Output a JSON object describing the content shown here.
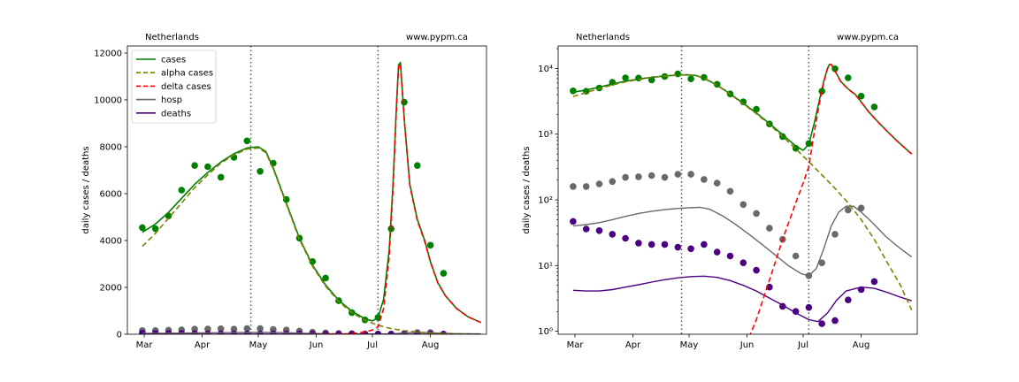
{
  "colors": {
    "cases": "#008000",
    "alpha": "#808000",
    "delta": "#ff0000",
    "hosp": "#696969",
    "deaths": "#4b0082",
    "axes": "#000000",
    "vline": "#555555"
  },
  "vlines": [
    "2021-04-27",
    "2021-07-04"
  ],
  "chart_data": [
    {
      "type": "line",
      "title": "",
      "header_left": "Netherlands",
      "header_right": "www.pypm.ca",
      "ylabel": "daily cases / deaths",
      "xlabel": "",
      "x_ticks": [
        {
          "date": "2021-03-01",
          "label": "Mar"
        },
        {
          "date": "2021-04-01",
          "label": "Apr"
        },
        {
          "date": "2021-05-01",
          "label": "May"
        },
        {
          "date": "2021-06-01",
          "label": "Jun"
        },
        {
          "date": "2021-07-01",
          "label": "Jul"
        },
        {
          "date": "2021-08-01",
          "label": "Aug"
        }
      ],
      "xlim": [
        "2021-02-20",
        "2021-08-31"
      ],
      "ylim": [
        0,
        12300
      ],
      "yscale": "linear",
      "y_ticks": [
        {
          "value": 0,
          "label": "0"
        },
        {
          "value": 2000,
          "label": "2000"
        },
        {
          "value": 4000,
          "label": "4000"
        },
        {
          "value": 6000,
          "label": "6000"
        },
        {
          "value": 8000,
          "label": "8000"
        },
        {
          "value": 10000,
          "label": "10000"
        },
        {
          "value": 12000,
          "label": "12000"
        }
      ],
      "legend_position": "top-left",
      "legend": [
        {
          "name": "cases",
          "style": "solid",
          "color_key": "cases"
        },
        {
          "name": "alpha cases",
          "style": "dashed",
          "color_key": "alpha"
        },
        {
          "name": "delta cases",
          "style": "dashed",
          "color_key": "delta"
        },
        {
          "name": "hosp",
          "style": "solid",
          "color_key": "hosp"
        },
        {
          "name": "deaths",
          "style": "solid",
          "color_key": "deaths"
        }
      ]
    },
    {
      "type": "line",
      "title": "",
      "header_left": "Netherlands",
      "header_right": "www.pypm.ca",
      "ylabel": "daily cases / deaths",
      "xlabel": "",
      "x_ticks": [
        {
          "date": "2021-03-01",
          "label": "Mar"
        },
        {
          "date": "2021-04-01",
          "label": "Apr"
        },
        {
          "date": "2021-05-01",
          "label": "May"
        },
        {
          "date": "2021-06-01",
          "label": "Jun"
        },
        {
          "date": "2021-07-01",
          "label": "Jul"
        },
        {
          "date": "2021-08-01",
          "label": "Aug"
        }
      ],
      "xlim": [
        "2021-02-20",
        "2021-08-31"
      ],
      "ylim": [
        0.9,
        22000
      ],
      "yscale": "log",
      "y_ticks": [
        {
          "value": 1,
          "label": "10⁰"
        },
        {
          "value": 10,
          "label": "10¹"
        },
        {
          "value": 100,
          "label": "10²"
        },
        {
          "value": 1000,
          "label": "10³"
        },
        {
          "value": 10000,
          "label": "10⁴"
        }
      ],
      "legend_position": "none",
      "legend": []
    }
  ],
  "series": {
    "cases_points": [
      [
        "2021-02-28",
        4550
      ],
      [
        "2021-03-07",
        4500
      ],
      [
        "2021-03-14",
        5050
      ],
      [
        "2021-03-21",
        6150
      ],
      [
        "2021-03-28",
        7200
      ],
      [
        "2021-04-04",
        7150
      ],
      [
        "2021-04-11",
        6700
      ],
      [
        "2021-04-18",
        7550
      ],
      [
        "2021-04-25",
        8250
      ],
      [
        "2021-05-02",
        6950
      ],
      [
        "2021-05-09",
        7300
      ],
      [
        "2021-05-16",
        5750
      ],
      [
        "2021-05-23",
        4100
      ],
      [
        "2021-05-30",
        3100
      ],
      [
        "2021-06-06",
        2400
      ],
      [
        "2021-06-13",
        1430
      ],
      [
        "2021-06-20",
        920
      ],
      [
        "2021-06-27",
        610
      ],
      [
        "2021-07-04",
        720
      ],
      [
        "2021-07-11",
        4500
      ],
      [
        "2021-07-18",
        9900
      ],
      [
        "2021-07-25",
        7200
      ],
      [
        "2021-08-01",
        3800
      ],
      [
        "2021-08-08",
        2600
      ]
    ],
    "hosp_points": [
      [
        "2021-02-28",
        160
      ],
      [
        "2021-03-07",
        160
      ],
      [
        "2021-03-14",
        175
      ],
      [
        "2021-03-21",
        190
      ],
      [
        "2021-03-28",
        220
      ],
      [
        "2021-04-04",
        225
      ],
      [
        "2021-04-11",
        235
      ],
      [
        "2021-04-18",
        220
      ],
      [
        "2021-04-25",
        245
      ],
      [
        "2021-05-02",
        245
      ],
      [
        "2021-05-09",
        205
      ],
      [
        "2021-05-16",
        180
      ],
      [
        "2021-05-23",
        135
      ],
      [
        "2021-05-30",
        85
      ],
      [
        "2021-06-06",
        62
      ],
      [
        "2021-06-13",
        37
      ],
      [
        "2021-06-20",
        25
      ],
      [
        "2021-06-27",
        14
      ],
      [
        "2021-07-04",
        7
      ],
      [
        "2021-07-11",
        11
      ],
      [
        "2021-07-18",
        30
      ],
      [
        "2021-07-25",
        70
      ],
      [
        "2021-08-01",
        75
      ]
    ],
    "deaths_points": [
      [
        "2021-02-28",
        47
      ],
      [
        "2021-03-07",
        36
      ],
      [
        "2021-03-14",
        34
      ],
      [
        "2021-03-21",
        30
      ],
      [
        "2021-03-28",
        26
      ],
      [
        "2021-04-04",
        22
      ],
      [
        "2021-04-11",
        21
      ],
      [
        "2021-04-18",
        21
      ],
      [
        "2021-04-25",
        19
      ],
      [
        "2021-05-02",
        18
      ],
      [
        "2021-05-09",
        21
      ],
      [
        "2021-05-16",
        16
      ],
      [
        "2021-05-23",
        14
      ],
      [
        "2021-05-30",
        11
      ],
      [
        "2021-06-06",
        8.5
      ],
      [
        "2021-06-13",
        4.7
      ],
      [
        "2021-06-20",
        2.4
      ],
      [
        "2021-06-27",
        2
      ],
      [
        "2021-07-04",
        2.3
      ],
      [
        "2021-07-11",
        1.3
      ],
      [
        "2021-07-18",
        1.45
      ],
      [
        "2021-07-25",
        3
      ],
      [
        "2021-08-01",
        4.3
      ],
      [
        "2021-08-08",
        5.7
      ]
    ],
    "cases_model": [
      [
        "2021-02-28",
        4350
      ],
      [
        "2021-03-07",
        4700
      ],
      [
        "2021-03-14",
        5200
      ],
      [
        "2021-03-21",
        5800
      ],
      [
        "2021-03-28",
        6400
      ],
      [
        "2021-04-04",
        6900
      ],
      [
        "2021-04-11",
        7350
      ],
      [
        "2021-04-18",
        7700
      ],
      [
        "2021-04-25",
        7950
      ],
      [
        "2021-05-01",
        8000
      ],
      [
        "2021-05-05",
        7800
      ],
      [
        "2021-05-09",
        7100
      ],
      [
        "2021-05-16",
        5600
      ],
      [
        "2021-05-23",
        4100
      ],
      [
        "2021-05-30",
        2950
      ],
      [
        "2021-06-06",
        2100
      ],
      [
        "2021-06-13",
        1450
      ],
      [
        "2021-06-20",
        980
      ],
      [
        "2021-06-27",
        660
      ],
      [
        "2021-07-01",
        570
      ],
      [
        "2021-07-04",
        700
      ],
      [
        "2021-07-07",
        1500
      ],
      [
        "2021-07-10",
        3600
      ],
      [
        "2021-07-12",
        6400
      ],
      [
        "2021-07-14",
        10000
      ],
      [
        "2021-07-15",
        11500
      ],
      [
        "2021-07-16",
        11600
      ],
      [
        "2021-07-18",
        9200
      ],
      [
        "2021-07-21",
        6400
      ],
      [
        "2021-07-25",
        4900
      ],
      [
        "2021-07-29",
        4000
      ],
      [
        "2021-08-01",
        3100
      ],
      [
        "2021-08-05",
        2200
      ],
      [
        "2021-08-09",
        1650
      ],
      [
        "2021-08-15",
        1100
      ],
      [
        "2021-08-21",
        750
      ],
      [
        "2021-08-28",
        500
      ]
    ],
    "alpha_model": [
      [
        "2021-02-28",
        3750
      ],
      [
        "2021-03-07",
        4300
      ],
      [
        "2021-03-14",
        4950
      ],
      [
        "2021-03-21",
        5600
      ],
      [
        "2021-03-28",
        6250
      ],
      [
        "2021-04-04",
        6800
      ],
      [
        "2021-04-11",
        7300
      ],
      [
        "2021-04-18",
        7650
      ],
      [
        "2021-04-25",
        7900
      ],
      [
        "2021-05-01",
        7950
      ],
      [
        "2021-05-05",
        7750
      ],
      [
        "2021-05-09",
        7050
      ],
      [
        "2021-05-16",
        5550
      ],
      [
        "2021-05-23",
        4050
      ],
      [
        "2021-05-30",
        2900
      ],
      [
        "2021-06-06",
        2050
      ],
      [
        "2021-06-13",
        1400
      ],
      [
        "2021-06-20",
        920
      ],
      [
        "2021-06-27",
        600
      ],
      [
        "2021-07-04",
        380
      ],
      [
        "2021-07-11",
        240
      ],
      [
        "2021-07-18",
        150
      ],
      [
        "2021-07-25",
        90
      ],
      [
        "2021-08-01",
        50
      ],
      [
        "2021-08-08",
        25
      ],
      [
        "2021-08-15",
        11
      ],
      [
        "2021-08-22",
        5
      ],
      [
        "2021-08-28",
        2.1
      ]
    ],
    "delta_model": [
      [
        "2021-06-02",
        0.8
      ],
      [
        "2021-06-06",
        1.5
      ],
      [
        "2021-06-13",
        6
      ],
      [
        "2021-06-20",
        25
      ],
      [
        "2021-06-27",
        90
      ],
      [
        "2021-07-01",
        180
      ],
      [
        "2021-07-04",
        320
      ],
      [
        "2021-07-07",
        1100
      ],
      [
        "2021-07-10",
        3300
      ],
      [
        "2021-07-12",
        6200
      ],
      [
        "2021-07-14",
        9900
      ],
      [
        "2021-07-15",
        11400
      ],
      [
        "2021-07-16",
        11550
      ],
      [
        "2021-07-18",
        9150
      ],
      [
        "2021-07-21",
        6350
      ],
      [
        "2021-07-25",
        4850
      ],
      [
        "2021-07-29",
        3950
      ],
      [
        "2021-08-01",
        3080
      ],
      [
        "2021-08-05",
        2190
      ],
      [
        "2021-08-09",
        1640
      ],
      [
        "2021-08-15",
        1095
      ],
      [
        "2021-08-21",
        748
      ],
      [
        "2021-08-28",
        498
      ]
    ],
    "hosp_model": [
      [
        "2021-02-28",
        40
      ],
      [
        "2021-03-07",
        42
      ],
      [
        "2021-03-14",
        45
      ],
      [
        "2021-03-21",
        50
      ],
      [
        "2021-03-28",
        56
      ],
      [
        "2021-04-04",
        62
      ],
      [
        "2021-04-11",
        67
      ],
      [
        "2021-04-18",
        71
      ],
      [
        "2021-04-25",
        74
      ],
      [
        "2021-05-01",
        76
      ],
      [
        "2021-05-07",
        77
      ],
      [
        "2021-05-12",
        72
      ],
      [
        "2021-05-19",
        57
      ],
      [
        "2021-05-26",
        42
      ],
      [
        "2021-06-02",
        30
      ],
      [
        "2021-06-09",
        21
      ],
      [
        "2021-06-16",
        14.5
      ],
      [
        "2021-06-23",
        10
      ],
      [
        "2021-06-30",
        7.5
      ],
      [
        "2021-07-04",
        7
      ],
      [
        "2021-07-08",
        9
      ],
      [
        "2021-07-12",
        18
      ],
      [
        "2021-07-16",
        40
      ],
      [
        "2021-07-20",
        65
      ],
      [
        "2021-07-24",
        80
      ],
      [
        "2021-07-28",
        80
      ],
      [
        "2021-08-01",
        65
      ],
      [
        "2021-08-07",
        45
      ],
      [
        "2021-08-14",
        28
      ],
      [
        "2021-08-21",
        19
      ],
      [
        "2021-08-28",
        13.5
      ]
    ],
    "deaths_model": [
      [
        "2021-02-28",
        4.2
      ],
      [
        "2021-03-07",
        4.1
      ],
      [
        "2021-03-14",
        4.1
      ],
      [
        "2021-03-21",
        4.3
      ],
      [
        "2021-03-28",
        4.7
      ],
      [
        "2021-04-04",
        5.1
      ],
      [
        "2021-04-11",
        5.6
      ],
      [
        "2021-04-18",
        6.1
      ],
      [
        "2021-04-25",
        6.5
      ],
      [
        "2021-05-02",
        6.8
      ],
      [
        "2021-05-09",
        6.9
      ],
      [
        "2021-05-16",
        6.6
      ],
      [
        "2021-05-23",
        5.9
      ],
      [
        "2021-05-30",
        5
      ],
      [
        "2021-06-06",
        4.1
      ],
      [
        "2021-06-13",
        3.2
      ],
      [
        "2021-06-20",
        2.5
      ],
      [
        "2021-06-27",
        1.9
      ],
      [
        "2021-07-04",
        1.5
      ],
      [
        "2021-07-09",
        1.4
      ],
      [
        "2021-07-14",
        1.9
      ],
      [
        "2021-07-19",
        3
      ],
      [
        "2021-07-24",
        4.1
      ],
      [
        "2021-08-01",
        4.7
      ],
      [
        "2021-08-08",
        4.5
      ],
      [
        "2021-08-15",
        3.9
      ],
      [
        "2021-08-22",
        3.3
      ],
      [
        "2021-08-28",
        2.9
      ]
    ]
  }
}
